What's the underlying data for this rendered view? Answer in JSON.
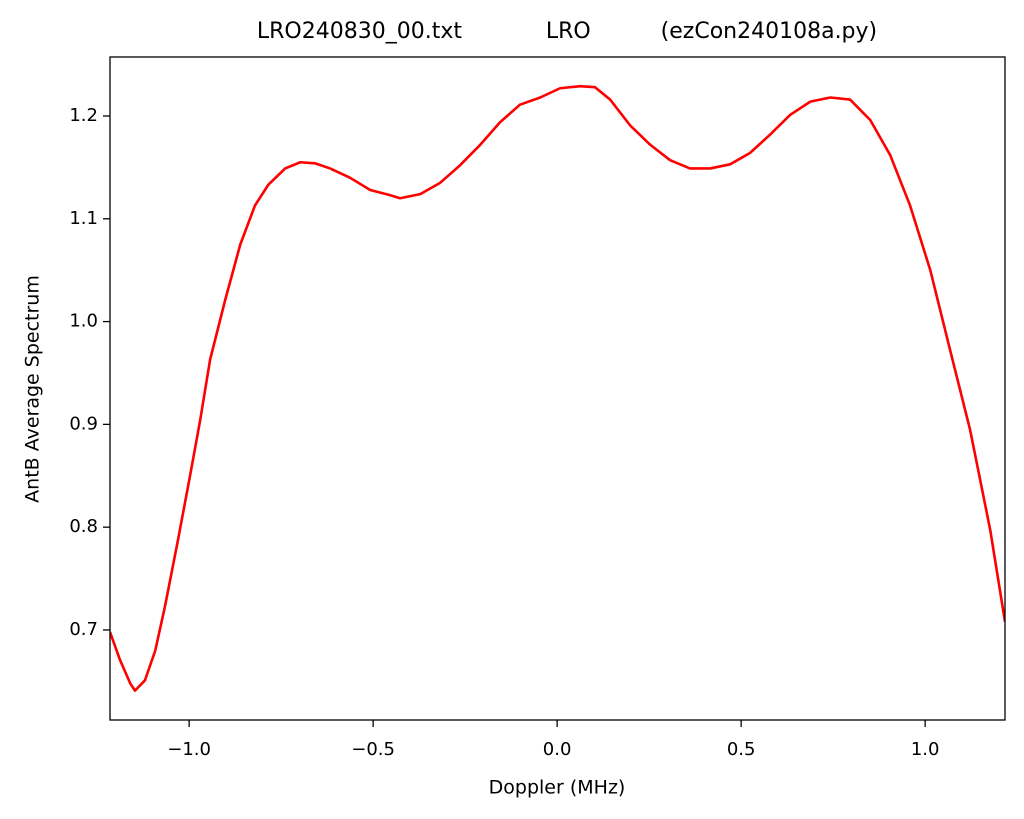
{
  "chart_data": {
    "type": "line",
    "title": "LRO240830_00.txt            LRO          (ezCon240108a.py)",
    "x_label": "Doppler (MHz)",
    "y_label": "AntB Average Spectrum",
    "color": "#ff0000",
    "x": [
      -1.215,
      -1.188,
      -1.16,
      -1.147,
      -1.12,
      -1.092,
      -1.065,
      -1.03,
      -0.997,
      -0.97,
      -0.943,
      -0.902,
      -0.861,
      -0.821,
      -0.785,
      -0.739,
      -0.698,
      -0.658,
      -0.617,
      -0.563,
      -0.508,
      -0.454,
      -0.427,
      -0.372,
      -0.318,
      -0.264,
      -0.209,
      -0.155,
      -0.101,
      -0.046,
      0.008,
      0.063,
      0.103,
      0.144,
      0.198,
      0.253,
      0.307,
      0.361,
      0.416,
      0.47,
      0.524,
      0.579,
      0.633,
      0.688,
      0.742,
      0.796,
      0.851,
      0.905,
      0.959,
      1.014,
      1.068,
      1.122,
      1.177,
      1.217
    ],
    "values": [
      0.698,
      0.671,
      0.648,
      0.641,
      0.651,
      0.68,
      0.724,
      0.788,
      0.851,
      0.904,
      0.963,
      1.021,
      1.075,
      1.113,
      1.133,
      1.149,
      1.155,
      1.154,
      1.149,
      1.14,
      1.128,
      1.123,
      1.12,
      1.124,
      1.135,
      1.152,
      1.172,
      1.194,
      1.211,
      1.218,
      1.227,
      1.229,
      1.228,
      1.216,
      1.191,
      1.172,
      1.157,
      1.149,
      1.149,
      1.153,
      1.164,
      1.182,
      1.201,
      1.214,
      1.218,
      1.216,
      1.196,
      1.162,
      1.113,
      1.05,
      0.972,
      0.895,
      0.797,
      0.708
    ],
    "xlim": [
      -1.215,
      1.217
    ],
    "ylim": [
      0.6124,
      1.2574
    ],
    "xticks": [
      {
        "value": -1,
        "label": "−1.0"
      },
      {
        "value": -0.5,
        "label": "−0.5"
      },
      {
        "value": 0,
        "label": "0.0"
      },
      {
        "value": 0.5,
        "label": "0.5"
      },
      {
        "value": 1,
        "label": "1.0"
      }
    ],
    "yticks": [
      0.7,
      0.8,
      0.9,
      {
        "value": 1,
        "label": "1.0"
      },
      1.1,
      1.2
    ]
  }
}
